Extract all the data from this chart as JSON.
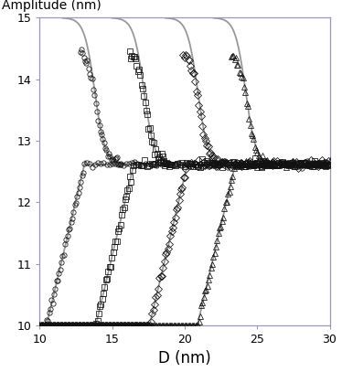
{
  "xlabel": "D (nm)",
  "ylabel": "Amplitude (nm)",
  "xlim": [
    10,
    30
  ],
  "ylim": [
    10,
    15
  ],
  "xticks": [
    10,
    15,
    20,
    25,
    30
  ],
  "yticks": [
    10,
    11,
    12,
    13,
    14,
    15
  ],
  "background_color": "#ffffff",
  "spine_color": "#9999bb",
  "grey_line_color": "#999999",
  "symbol_color": "#111111",
  "datasets": [
    {
      "jump_x": 13.1,
      "flat_y": 12.62,
      "marker": "o",
      "seed": 1
    },
    {
      "jump_x": 16.5,
      "flat_y": 12.62,
      "marker": "s",
      "seed": 2
    },
    {
      "jump_x": 20.2,
      "flat_y": 12.62,
      "marker": "D",
      "seed": 3
    },
    {
      "jump_x": 23.5,
      "flat_y": 12.62,
      "marker": "^",
      "seed": 4
    }
  ],
  "ylabel_fontsize": 10,
  "xlabel_fontsize": 12,
  "tick_fontsize": 9,
  "figsize": [
    3.74,
    4.07
  ],
  "dpi": 100
}
